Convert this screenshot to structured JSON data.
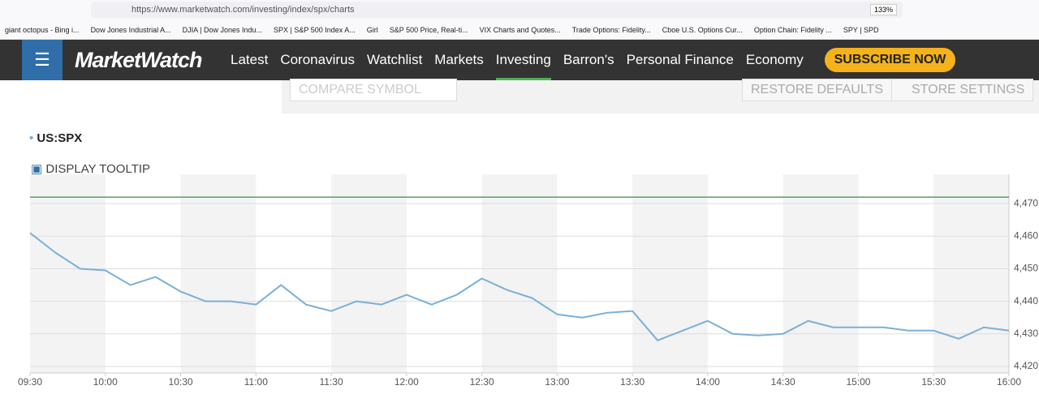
{
  "browser": {
    "url": "https://www.marketwatch.com/investing/index/spx/charts",
    "zoom": "133%",
    "bookmarks": [
      "giant octopus - Bing i...",
      "Dow Jones Industrial A...",
      "DJIA | Dow Jones Indu...",
      "SPX | S&P 500 Index A...",
      "Girl",
      "S&P 500 Price, Real-ti...",
      "VIX Charts and Quotes...",
      "Trade Options: Fidelity...",
      "Cboe U.S. Options Cur...",
      "Option Chain: Fidelity ...",
      "SPY | SPD"
    ]
  },
  "nav": {
    "logo": "MarketWatch",
    "items": [
      "Latest",
      "Coronavirus",
      "Watchlist",
      "Markets",
      "Investing",
      "Barron's",
      "Personal Finance",
      "Economy"
    ],
    "subscribe": "SUBSCRIBE NOW"
  },
  "controls": {
    "compare": "COMPARE SYMBOL",
    "restore": "RESTORE DEFAULTS",
    "store": "STORE SETTINGS",
    "tooltip": "DISPLAY TOOLTIP"
  },
  "chart_data": {
    "type": "line",
    "x": [
      "09:30",
      "09:40",
      "09:50",
      "10:00",
      "10:10",
      "10:20",
      "10:30",
      "10:40",
      "10:50",
      "11:00",
      "11:10",
      "11:20",
      "11:30",
      "11:40",
      "11:50",
      "12:00",
      "12:10",
      "12:20",
      "12:30",
      "12:40",
      "12:50",
      "13:00",
      "13:10",
      "13:20",
      "13:30",
      "13:40",
      "13:50",
      "14:00",
      "14:10",
      "14:20",
      "14:30",
      "14:40",
      "14:50",
      "15:00",
      "15:10",
      "15:20",
      "15:30",
      "15:40",
      "15:50",
      "16:00"
    ],
    "series": [
      {
        "name": "US:SPX",
        "color": "#7ab0d8",
        "values": [
          4461,
          4455,
          4450,
          4449.5,
          4445,
          4447.5,
          4443,
          4440,
          4440,
          4439,
          4445,
          4439,
          4437,
          4440,
          4439,
          4442,
          4439,
          4442,
          4447,
          4443.5,
          4441,
          4436,
          4435,
          4436.5,
          4437,
          4428,
          4431,
          4434,
          4430,
          4429.5,
          4430,
          4434,
          4432,
          4432,
          4432,
          4431,
          4431,
          4428.5,
          4432,
          4431
        ]
      }
    ],
    "xticks": [
      "09:30",
      "10:00",
      "10:30",
      "11:00",
      "11:30",
      "12:00",
      "12:30",
      "13:00",
      "13:30",
      "14:00",
      "14:30",
      "15:00",
      "15:30",
      "16:00"
    ],
    "ylim": [
      4418,
      4479
    ],
    "yticks": [
      {
        "value": 4420,
        "label": "4,420"
      },
      {
        "value": 4430,
        "label": "4,430"
      },
      {
        "value": 4440,
        "label": "4,440"
      },
      {
        "value": 4450,
        "label": "4,450"
      },
      {
        "value": 4460,
        "label": "4,460"
      },
      {
        "value": 4470,
        "label": "4,470"
      }
    ],
    "reference_line": {
      "value": 4472,
      "color": "#3d8c3d"
    },
    "grid": true
  }
}
